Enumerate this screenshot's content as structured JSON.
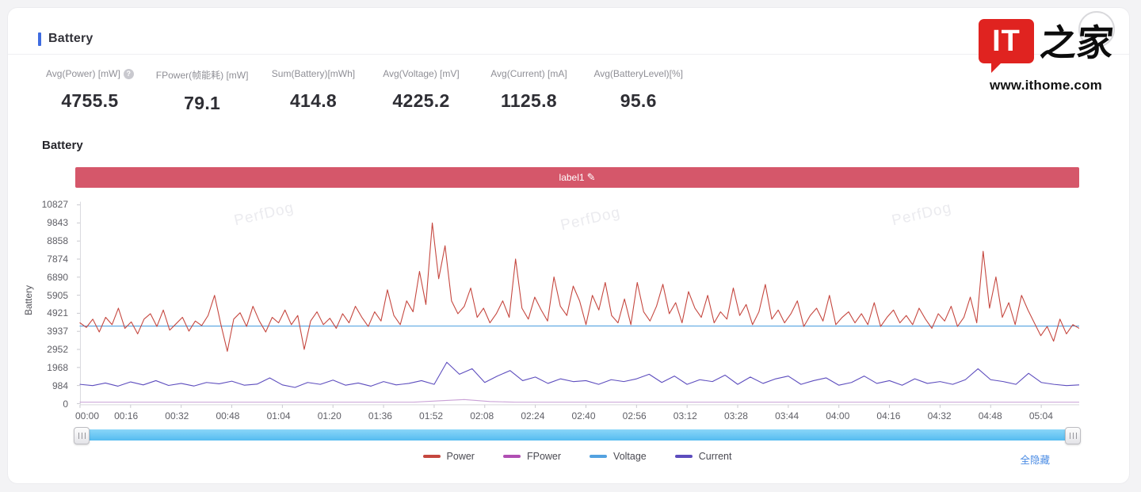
{
  "header": {
    "title": "Battery"
  },
  "stats": {
    "items": [
      {
        "label": "Avg(Power) [mW]",
        "value": "4755.5",
        "help_icon": "?"
      },
      {
        "label": "FPower(帧能耗) [mW]",
        "value": "79.1"
      },
      {
        "label": "Sum(Battery)[mWh]",
        "value": "414.8"
      },
      {
        "label": "Avg(Voltage) [mV]",
        "value": "4225.2"
      },
      {
        "label": "Avg(Current) [mA]",
        "value": "1125.8"
      },
      {
        "label": "Avg(BatteryLevel)[%]",
        "value": "95.6"
      }
    ]
  },
  "logo": {
    "it": "IT",
    "zh": "之家",
    "url": "www.ithome.com",
    "red": "#e02320"
  },
  "section": {
    "title": "Battery",
    "label_tag": "label1",
    "pencil_icon": "✎",
    "bar_color": "#d5576a"
  },
  "watermark_text": "PerfDog",
  "hide_all_label": "全隐藏",
  "chart_data": {
    "type": "line",
    "title": "Battery",
    "y_axis_label": "Battery",
    "y_max": 10827,
    "y_ticks": [
      10827,
      9843,
      8858,
      7874,
      6890,
      5905,
      4921,
      3937,
      2952,
      1968,
      984,
      0
    ],
    "x_ticks": [
      "00:00",
      "00:16",
      "00:32",
      "00:48",
      "01:04",
      "01:20",
      "01:36",
      "01:52",
      "02:08",
      "02:24",
      "02:40",
      "02:56",
      "03:12",
      "03:28",
      "03:44",
      "04:00",
      "04:16",
      "04:32",
      "04:48",
      "05:04"
    ],
    "x_tick_interval_seconds": 16,
    "x_total_seconds": 316,
    "grid": false,
    "legend_position": "bottom",
    "legend_order": [
      "Power",
      "FPower",
      "Voltage",
      "Current"
    ],
    "series": [
      {
        "name": "Voltage",
        "color": "#53a2e0",
        "z": 1,
        "values": [
          4225,
          4228,
          4225
        ]
      },
      {
        "name": "Current",
        "color": "#5d4dbe",
        "z": 2,
        "values": [
          1050,
          980,
          1120,
          950,
          1180,
          1020,
          1250,
          990,
          1100,
          960,
          1150,
          1080,
          1220,
          1000,
          1060,
          1400,
          1020,
          880,
          1150,
          1050,
          1280,
          1000,
          1120,
          950,
          1200,
          1020,
          1100,
          1250,
          1050,
          2250,
          1600,
          1900,
          1150,
          1500,
          1800,
          1250,
          1450,
          1100,
          1350,
          1200,
          1250,
          1050,
          1300,
          1200,
          1350,
          1600,
          1150,
          1500,
          1050,
          1300,
          1200,
          1550,
          1050,
          1450,
          1100,
          1350,
          1500,
          1050,
          1250,
          1400,
          1000,
          1150,
          1500,
          1100,
          1250,
          1000,
          1350,
          1100,
          1200,
          1050,
          1300,
          1900,
          1300,
          1200,
          1050,
          1650,
          1150,
          1050,
          980,
          1020
        ]
      },
      {
        "name": "FPower",
        "color": "#b04fb3",
        "line_color": "#c9a0d6",
        "z": 3,
        "values": [
          79,
          79,
          79,
          79,
          79,
          79,
          79,
          79,
          79,
          79,
          79,
          79,
          79,
          79,
          150,
          220,
          110,
          79,
          79,
          79,
          79,
          79,
          79,
          79,
          79,
          79,
          79,
          79,
          79,
          79,
          79,
          79,
          79,
          79,
          79,
          79,
          79,
          79,
          79,
          79
        ]
      },
      {
        "name": "Power",
        "color": "#c5473f",
        "z": 4,
        "values": [
          4400,
          4150,
          4600,
          3900,
          4700,
          4300,
          5200,
          4100,
          4450,
          3800,
          4600,
          4900,
          4200,
          5100,
          4000,
          4350,
          4700,
          3950,
          4500,
          4250,
          4800,
          5900,
          4300,
          2850,
          4600,
          4950,
          4200,
          5300,
          4500,
          3900,
          4700,
          4400,
          5100,
          4300,
          4800,
          2950,
          4500,
          5000,
          4300,
          4650,
          4100,
          4900,
          4400,
          5300,
          4700,
          4200,
          5000,
          4500,
          6200,
          4800,
          4300,
          5600,
          5000,
          7200,
          5400,
          9843,
          6800,
          8600,
          5600,
          4900,
          5300,
          6300,
          4700,
          5200,
          4400,
          4900,
          5600,
          4700,
          7874,
          5200,
          4600,
          5800,
          5100,
          4500,
          6900,
          5300,
          4800,
          6400,
          5600,
          4300,
          5900,
          5100,
          6600,
          4800,
          4400,
          5700,
          4300,
          6600,
          5000,
          4500,
          5300,
          6500,
          4900,
          5500,
          4400,
          6100,
          5200,
          4700,
          5900,
          4400,
          5000,
          4600,
          6300,
          4800,
          5400,
          4300,
          5000,
          6490,
          4600,
          5100,
          4400,
          4900,
          5600,
          4200,
          4800,
          5200,
          4500,
          5900,
          4300,
          4700,
          5000,
          4400,
          4900,
          4300,
          5500,
          4200,
          4700,
          5100,
          4400,
          4800,
          4300,
          5200,
          4600,
          4100,
          4900,
          4500,
          5300,
          4200,
          4700,
          5800,
          4400,
          8300,
          5200,
          6900,
          4700,
          5500,
          4300,
          5900,
          5100,
          4400,
          3700,
          4200,
          3400,
          4600,
          3800,
          4300,
          4100
        ]
      }
    ]
  }
}
